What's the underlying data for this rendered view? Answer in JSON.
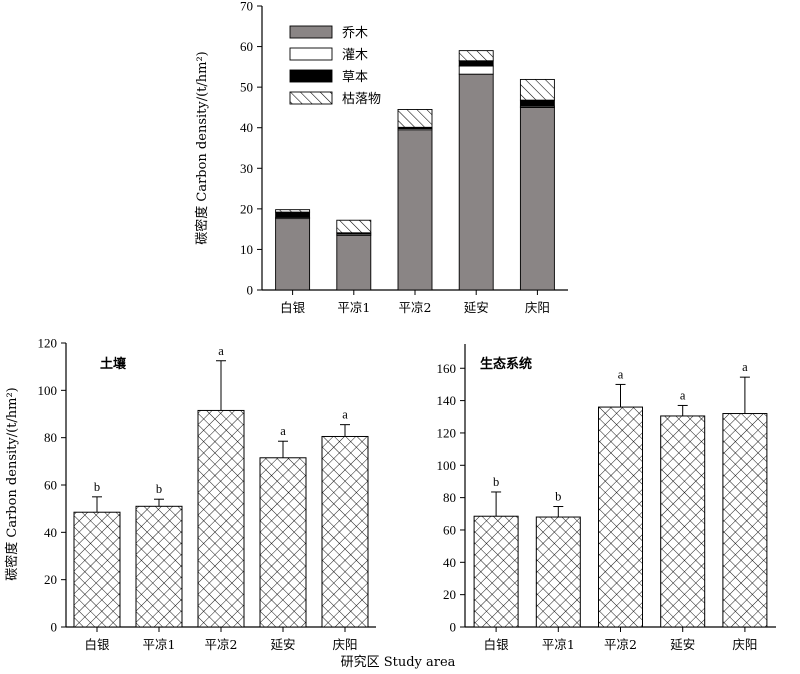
{
  "figure": {
    "ylabel": "碳密度 Carbon density/(t/hm²)",
    "xlabel": "研究区 Study area"
  },
  "chart_data": [
    {
      "type": "bar",
      "stacked": true,
      "categories": [
        "白银",
        "平凉1",
        "平凉2",
        "延安",
        "庆阳"
      ],
      "ylim": [
        0,
        70
      ],
      "yticks": [
        0,
        10,
        20,
        30,
        40,
        50,
        60,
        70
      ],
      "ylabel": "碳密度 Carbon density/(t/hm²)",
      "legend_position": "top-left",
      "series": [
        {
          "name": "乔木",
          "values": [
            17.6,
            13.5,
            39.5,
            53.2,
            45.0
          ],
          "color": "#8a8585",
          "pattern": "solid"
        },
        {
          "name": "灌木",
          "values": [
            0.3,
            0.3,
            0.3,
            2.0,
            0.3
          ],
          "color": "#ffffff",
          "pattern": "solid"
        },
        {
          "name": "草本",
          "values": [
            1.3,
            0.3,
            0.3,
            1.3,
            1.5
          ],
          "color": "#000000",
          "pattern": "solid"
        },
        {
          "name": "枯落物",
          "values": [
            0.6,
            3.1,
            4.4,
            2.5,
            5.1
          ],
          "color": "#ffffff",
          "pattern": "diagonal-hatch"
        }
      ]
    },
    {
      "type": "bar",
      "title": "土壤",
      "categories": [
        "白银",
        "平凉1",
        "平凉2",
        "延安",
        "庆阳"
      ],
      "values": [
        48.5,
        51.0,
        91.5,
        71.5,
        80.5
      ],
      "error": [
        6.5,
        3.0,
        21.0,
        7.0,
        5.0
      ],
      "significance": [
        "b",
        "b",
        "a",
        "a",
        "a"
      ],
      "ylim": [
        0,
        120
      ],
      "yticks": [
        0,
        20,
        40,
        60,
        80,
        100,
        120
      ],
      "ylabel": "碳密度 Carbon density/(t/hm²)",
      "pattern": "cross-hatch"
    },
    {
      "type": "bar",
      "title": "生态系统",
      "categories": [
        "白银",
        "平凉1",
        "平凉2",
        "延安",
        "庆阳"
      ],
      "values": [
        68.5,
        68.0,
        136.0,
        130.5,
        132.0
      ],
      "error": [
        15.0,
        6.5,
        14.0,
        6.5,
        22.5
      ],
      "significance": [
        "b",
        "b",
        "a",
        "a",
        "a"
      ],
      "ylim": [
        0,
        175
      ],
      "yticks": [
        0,
        20,
        40,
        60,
        80,
        100,
        120,
        140,
        160
      ],
      "pattern": "cross-hatch"
    }
  ]
}
